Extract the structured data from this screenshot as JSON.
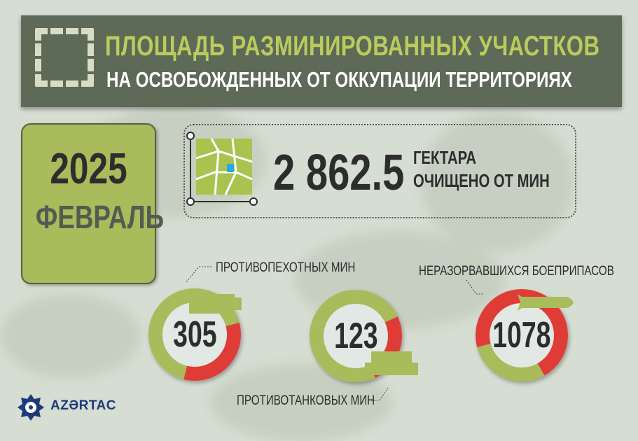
{
  "header": {
    "title_line1": "ПЛОЩАДЬ РАЗМИНИРОВАННЫХ УЧАСТКОВ",
    "title_line2": "НА ОСВОБОЖДЕННЫХ ОТ ОККУПАЦИИ ТЕРРИТОРИЯХ",
    "icon": "dashed-frame-icon"
  },
  "period": {
    "year": "2025",
    "month": "ФЕВРАЛЬ"
  },
  "area": {
    "value": "2 862.5",
    "unit": "ГЕКТАРА",
    "caption": "ОЧИЩЕНО ОТ МИН",
    "icon": "map-area-icon"
  },
  "stats": [
    {
      "value": "305",
      "label": "ПРОТИВОПЕХОТНЫХ МИН",
      "red_share": 0.33
    },
    {
      "value": "123",
      "label": "ПРОТИВОТАНКОВЫХ МИН",
      "red_share": 0.25
    },
    {
      "value": "1078",
      "label": "НЕРАЗОРВАВШИХСЯ БОЕПРИПАСОВ",
      "red_share": 0.71
    }
  ],
  "colors": {
    "green": "#a9bb5a",
    "red": "#df3c37",
    "banner": "#5d6a58"
  },
  "logo": {
    "text": "AZƏRTAC"
  }
}
